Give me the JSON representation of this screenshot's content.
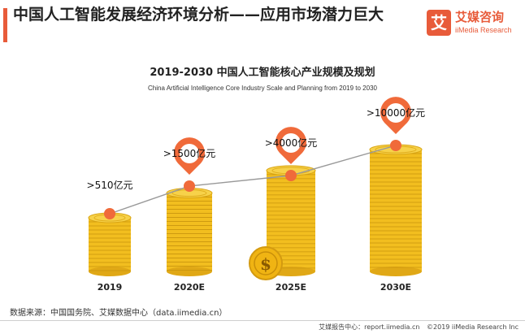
{
  "header": {
    "title": "中国人工智能发展经济环境分析——应用市场潜力巨大",
    "logo_mark": "艾",
    "logo_cn": "艾媒咨询",
    "logo_en": "iiMedia Research"
  },
  "chart_data": {
    "type": "bar",
    "title": "2019-2030 中国人工智能核心产业规模及规划",
    "subtitle": "China Artificial Intelligence Core Industry Scale and Planning from 2019 to 2030",
    "categories": [
      "2019",
      "2020E",
      "2025E",
      "2030E"
    ],
    "values": [
      510,
      1500,
      4000,
      10000
    ],
    "unit": "亿元",
    "labels": [
      ">510亿元",
      ">1500亿元",
      ">4000亿元",
      ">10000亿元"
    ],
    "style": "coin-stacks-with-trend-line",
    "colors": {
      "coin": "#f2be1f",
      "marker": "#f06a3a",
      "line": "#999999"
    }
  },
  "footer": {
    "source": "数据来源：中国国务院、艾媒数据中心（data.iimedia.cn）",
    "report_site": "艾媒报告中心：report.iimedia.cn",
    "copyright": "©2019  iiMedia Research  Inc"
  }
}
